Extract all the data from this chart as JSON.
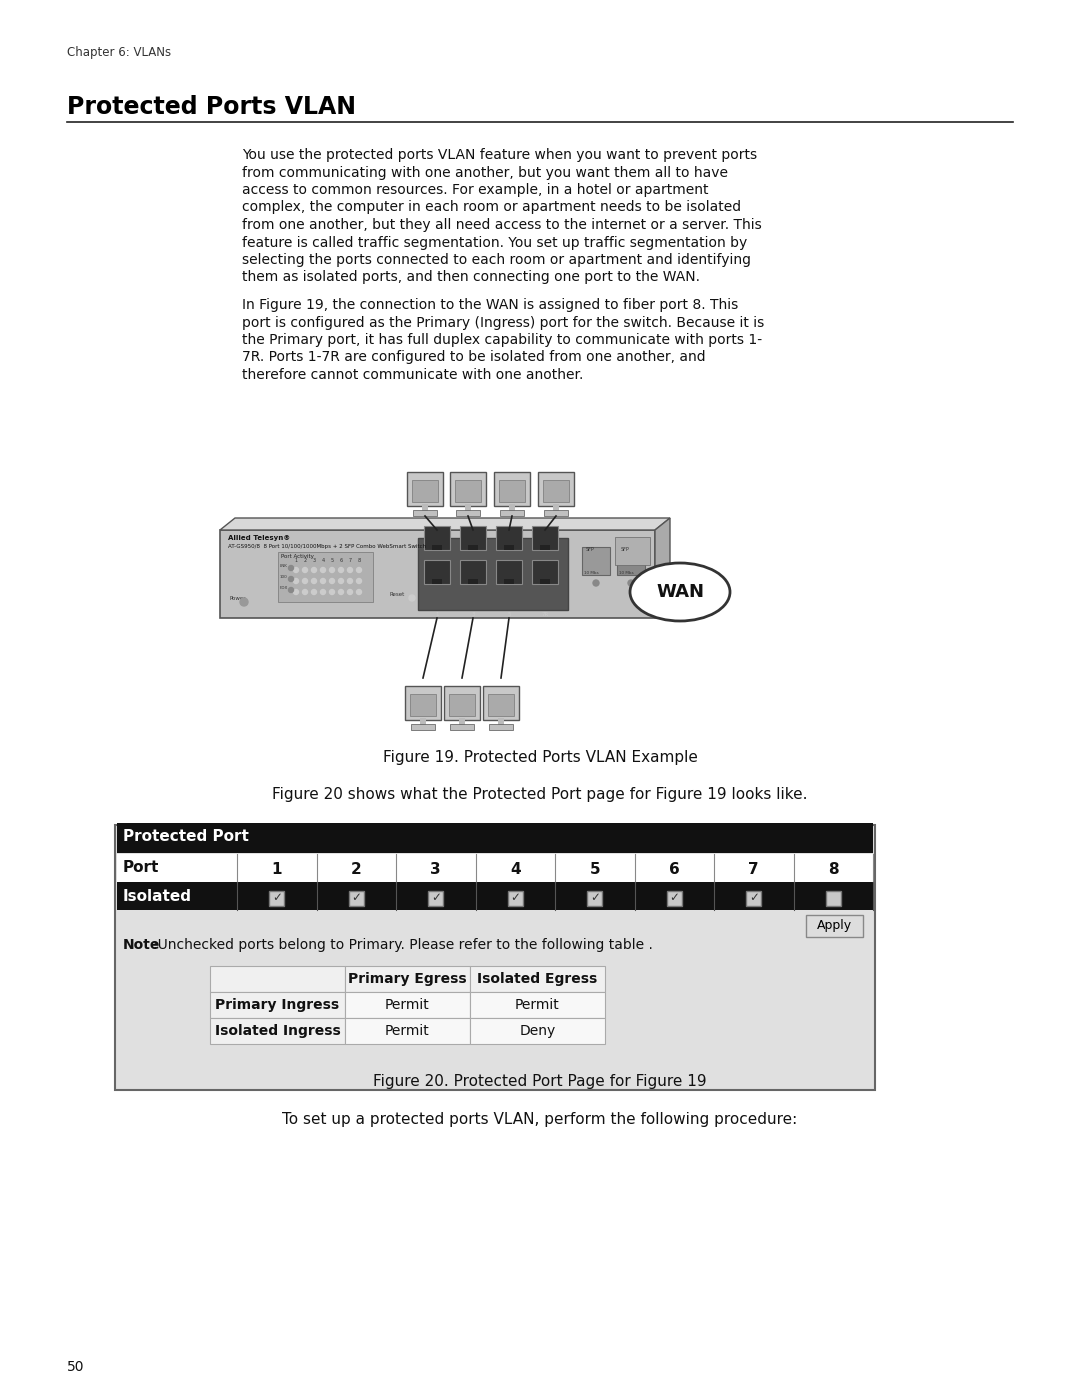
{
  "page_bg": "#ffffff",
  "header_text": "Chapter 6: VLANs",
  "title": "Protected Ports VLAN",
  "body_text_1_lines": [
    "You use the protected ports VLAN feature when you want to prevent ports",
    "from communicating with one another, but you want them all to have",
    "access to common resources. For example, in a hotel or apartment",
    "complex, the computer in each room or apartment needs to be isolated",
    "from one another, but they all need access to the internet or a server. This",
    "feature is called traffic segmentation. You set up traffic segmentation by",
    "selecting the ports connected to each room or apartment and identifying",
    "them as isolated ports, and then connecting one port to the WAN."
  ],
  "body_text_2_lines": [
    "In Figure 19, the connection to the WAN is assigned to fiber port 8. This",
    "port is configured as the Primary (Ingress) port for the switch. Because it is",
    "the Primary port, it has full duplex capability to communicate with ports 1-",
    "7R. Ports 1-7R are configured to be isolated from one another, and",
    "therefore cannot communicate with one another."
  ],
  "fig19_caption": "Figure 19. Protected Ports VLAN Example",
  "fig20_intro": "Figure 20 shows what the Protected Port page for Figure 19 looks like.",
  "fig20_caption": "Figure 20. Protected Port Page for Figure 19",
  "bottom_text": "To set up a protected ports VLAN, perform the following procedure:",
  "page_number": "50",
  "wan_text": "WAN",
  "note_text_bold": "Note",
  "note_text_normal": ":Unchecked ports belong to Primary. Please refer to the following table .",
  "apply_text": "Apply"
}
